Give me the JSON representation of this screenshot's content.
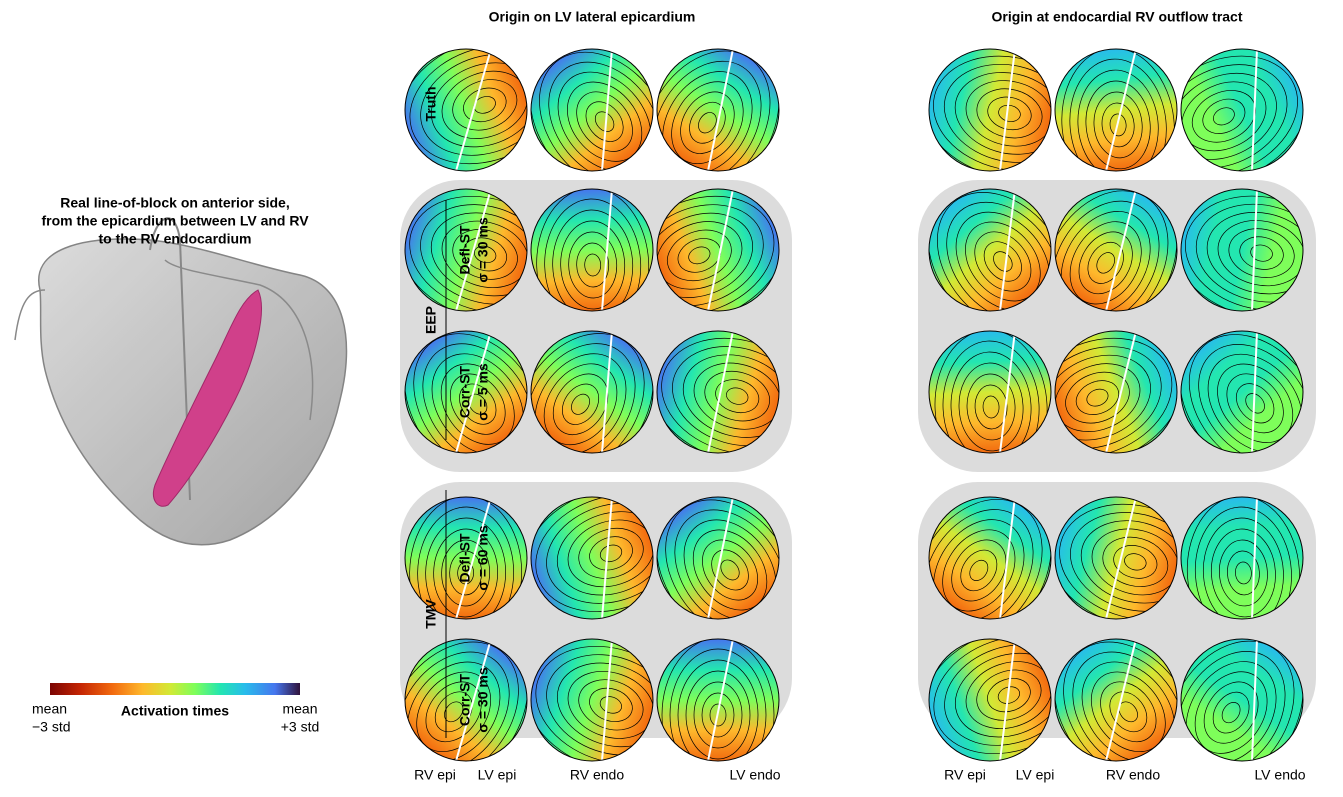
{
  "figure": {
    "left_title": [
      "Real line-of-block on anterior side,",
      "from the epicardium between LV and RV",
      "to the RV endocardium"
    ],
    "colorbar": {
      "label": "Activation times",
      "min_label": [
        "mean",
        "−3 std"
      ],
      "max_label": [
        "mean",
        "+3 std"
      ]
    },
    "column_titles": [
      "Origin on LV lateral epicardium",
      "Origin at endocardial RV outflow tract"
    ],
    "truth_label": "Truth",
    "groups": [
      {
        "name": "EEP",
        "rows": [
          [
            "Defl-ST",
            "σ = 30 ms"
          ],
          [
            "Corr-ST",
            "σ = 5 ms"
          ]
        ]
      },
      {
        "name": "TMV",
        "rows": [
          [
            "Defl-ST",
            "σ = 60 ms"
          ],
          [
            "Corr-ST",
            "σ = 30 ms"
          ]
        ]
      }
    ],
    "view_labels": [
      "RV epi",
      "LV epi",
      "RV endo",
      "LV endo",
      "RV epi",
      "LV epi",
      "RV endo",
      "LV endo"
    ]
  }
}
